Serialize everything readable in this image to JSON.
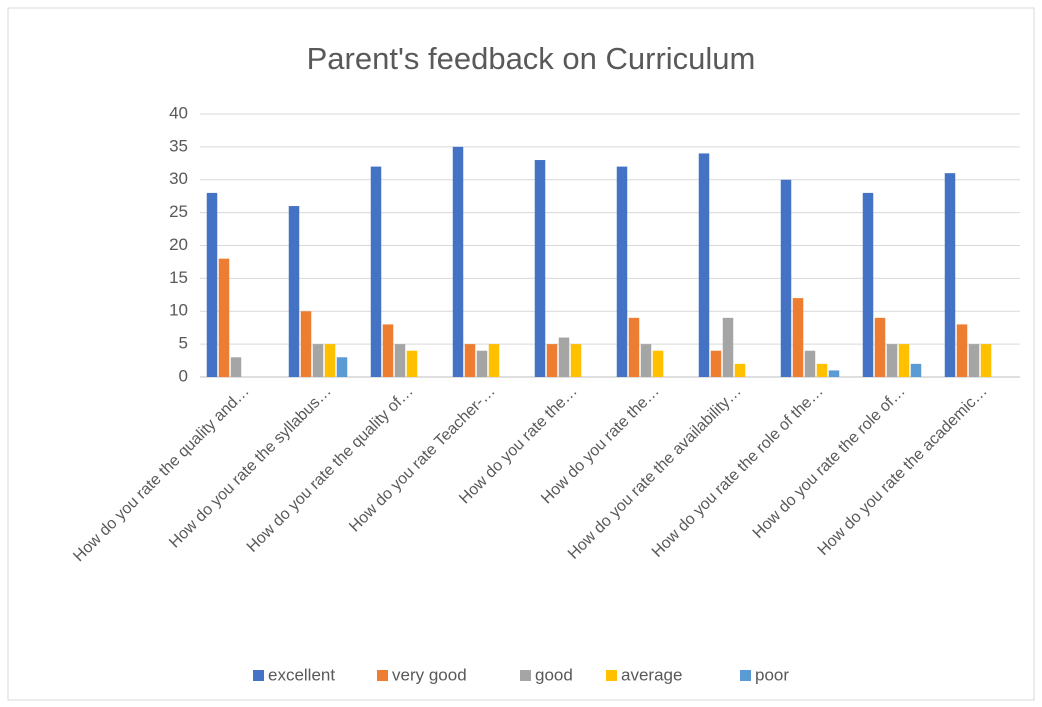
{
  "chart_data": {
    "type": "bar",
    "title": "Parent's feedback on Curriculum",
    "categories": [
      "How do you rate the quality and…",
      "How do you rate the syllabus…",
      "How do you rate the quality of…",
      "How do you rate Teacher-…",
      "How do you rate the…",
      "How do you rate  the…",
      "How do you rate the availability…",
      "How do you rate the role of the…",
      "How do you rate the role  of…",
      "How do you rate the  academic…"
    ],
    "series": [
      {
        "name": "excellent",
        "color": "#4472c4",
        "values": [
          28,
          26,
          32,
          35,
          33,
          32,
          34,
          30,
          28,
          31
        ]
      },
      {
        "name": "very good",
        "color": "#ed7d31",
        "values": [
          18,
          10,
          8,
          5,
          5,
          9,
          4,
          12,
          9,
          8
        ]
      },
      {
        "name": "good",
        "color": "#a5a5a5",
        "values": [
          3,
          5,
          5,
          4,
          6,
          5,
          9,
          4,
          5,
          5
        ]
      },
      {
        "name": "average",
        "color": "#ffc000",
        "values": [
          0,
          5,
          4,
          5,
          5,
          4,
          2,
          2,
          5,
          5
        ]
      },
      {
        "name": "poor",
        "color": "#5b9bd5",
        "values": [
          0,
          3,
          0,
          0,
          0,
          0,
          0,
          1,
          2,
          0
        ]
      }
    ],
    "ylim": [
      0,
      40
    ],
    "yticks": [
      0,
      5,
      10,
      15,
      20,
      25,
      30,
      35,
      40
    ],
    "grid": true,
    "legend": "bottom"
  }
}
